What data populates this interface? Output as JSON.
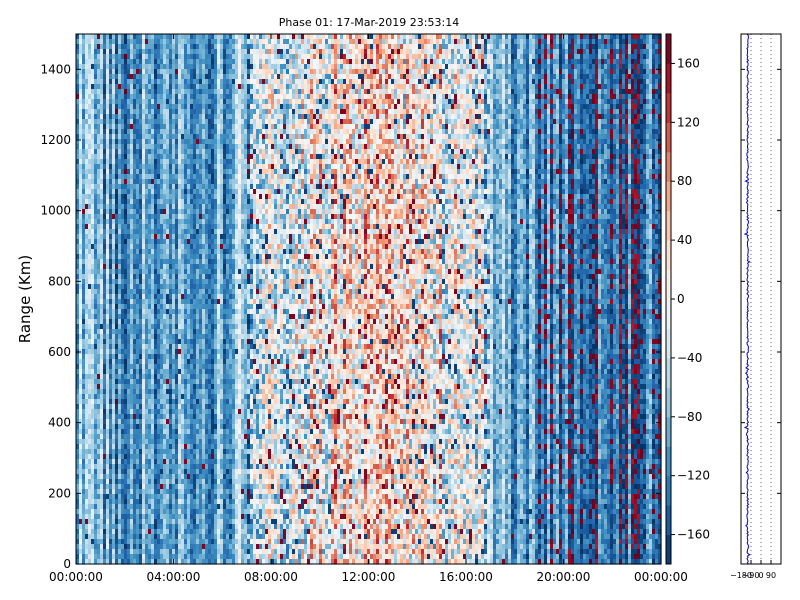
{
  "chart_data": [
    {
      "type": "heatmap",
      "title": "Phase 01: 17-Mar-2019 23:53:14",
      "xlabel": "",
      "ylabel": "Range (Km)",
      "x_tick_labels": [
        "00:00:00",
        "04:00:00",
        "08:00:00",
        "12:00:00",
        "16:00:00",
        "20:00:00",
        "00:00:00"
      ],
      "x_range_hours": [
        0,
        24
      ],
      "y_ticks": [
        0,
        200,
        400,
        600,
        800,
        1000,
        1200,
        1400
      ],
      "ylim": [
        0,
        1500
      ],
      "colorbar": {
        "colormap": "RdBu_r",
        "vmin": -180,
        "vmax": 180,
        "ticks": [
          -160,
          -120,
          -80,
          -40,
          0,
          40,
          80,
          120,
          160
        ]
      },
      "phase_profile_by_hour": {
        "hours": [
          0,
          2,
          4,
          6,
          8,
          10,
          12,
          14,
          16,
          18,
          20,
          22,
          24
        ],
        "mean_phase_deg": [
          -70,
          -100,
          -105,
          -95,
          -40,
          10,
          30,
          15,
          -10,
          -110,
          -125,
          -140,
          -130
        ]
      },
      "grid": false
    },
    {
      "type": "line",
      "title": "",
      "x_tick_labels": [
        "−180",
        "−90",
        "0",
        "90"
      ],
      "x_ticks": [
        -180,
        -90,
        0,
        90
      ],
      "xlim": [
        -180,
        180
      ],
      "ylim": [
        0,
        1500
      ],
      "grid": true,
      "series_color": "#0000dd",
      "approx_profile_mean_deg": -120
    }
  ],
  "colors": {
    "profile_line": "#0000dd",
    "frame": "#000000"
  }
}
